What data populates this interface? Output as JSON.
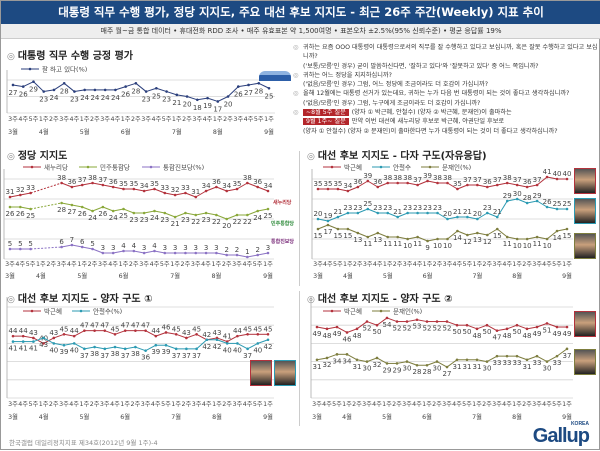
{
  "header": {
    "title": "대통령 직무 수행 평가, 정당 지지도, 주요 대선 후보 지지도 - 최근 26주 주간(Weekly) 지표 추이",
    "subtitle": "매주 월~금 통합 데이터 • 휴대전화 RDD 조사 • 매주 유효표본 약 1,500여명 • 표본오차 ±2.5%(95% 신뢰수준) • 평균 응답률 19%"
  },
  "questions": [
    {
      "lines": [
        "귀하는 요즘 OOO 대통령이 대통령으로서의 직무를 잘 수행하고 있다고 보십니까, 혹은 잘못 수행하고 있다고 보십니까?",
        "('보통/모름'인 경우) 굳이 말씀하신다면, '잘하고 있다'와 '잘못하고 있다' 중 어느 쪽입니까?"
      ]
    },
    {
      "lines": [
        "귀하는 어느 정당을 지지하십니까?",
        "('없음/모름'인 경우) 그럼, 어느 정당에 조금이라도 더 호감이 가십니까?"
      ]
    },
    {
      "lines": [
        "올해 12월에는 대통령 선거가 있는데요, 귀하는 누가 다음 번 대통령이 되는 것이 좋다고 생각하십니까?",
        "('없음/모름'인 경우) 그럼, 누구에게 조금이라도 더 호감이 가십니까?"
      ]
    },
    {
      "badge1": "~8월 5주 질문",
      "line1": "(양자 ① 박근혜, 안철수) (양자 ② 박근혜, 문재인)이 출마하는",
      "badge2": "9월 1주~ 질문",
      "line2": "만약 이번 대선에 새누리당 후보로 박근혜, 야권단일 후보로",
      "line3": "(양자 ① 안철수) (양자 ② 문재인)이 출마한다면 누가 대통령이 되는 것이 더 좋다고 생각하십니까?"
    }
  ],
  "logos": {
    "saenuri": "새누리당",
    "democratic": "민주통합당",
    "upp": "통합진보당"
  },
  "footer": "한국갤럽 데일리정치지표 제34호(2012년 9월 1주)-4",
  "brand": {
    "name": "Gallup",
    "sub": "KOREA"
  },
  "chart_data": [
    {
      "id": "approval",
      "type": "line",
      "title": "대통령 직무 수행 긍정 평가",
      "ylim": [
        10,
        30
      ],
      "weeks": [
        "3주",
        "4주",
        "5주",
        "1주",
        "2주",
        "3주",
        "4주",
        "1주",
        "2주",
        "3주",
        "4주",
        "1주",
        "2주",
        "3주",
        "4주",
        "5주",
        "1주",
        "2주",
        "3주",
        "4주",
        "1주",
        "2주",
        "3주",
        "4주",
        "5주",
        "1주"
      ],
      "months": [
        {
          "label": "3월",
          "index": 0
        },
        {
          "label": "4월",
          "index": 3
        },
        {
          "label": "5월",
          "index": 7
        },
        {
          "label": "6월",
          "index": 11
        },
        {
          "label": "7월",
          "index": 16
        },
        {
          "label": "8월",
          "index": 20
        },
        {
          "label": "9월",
          "index": 25
        }
      ],
      "series": [
        {
          "name": "잘 하고 있다(%)",
          "color": "#2b3f7c",
          "values": [
            27,
            26,
            29,
            23,
            24,
            28,
            23,
            24,
            24,
            24,
            24,
            26,
            28,
            23,
            25,
            23,
            21,
            20,
            18,
            19,
            17,
            20,
            26,
            27,
            28,
            25
          ]
        }
      ]
    },
    {
      "id": "party",
      "type": "line",
      "title": "정당 지지도",
      "ylim": [
        0,
        40
      ],
      "series": [
        {
          "name": "새누리당",
          "color": "#b3323c",
          "values": [
            31,
            32,
            33,
            null,
            null,
            38,
            36,
            37,
            38,
            37,
            36,
            35,
            35,
            34,
            35,
            33,
            32,
            33,
            31,
            34,
            36,
            34,
            35,
            38,
            36,
            34
          ]
        },
        {
          "name": "민주통합당",
          "color": "#8aa83a",
          "values": [
            26,
            26,
            25,
            null,
            null,
            28,
            27,
            26,
            24,
            26,
            24,
            25,
            23,
            23,
            24,
            23,
            21,
            23,
            22,
            23,
            22,
            20,
            22,
            22,
            24,
            25
          ]
        },
        {
          "name": "통합진보당(%)",
          "color": "#8b72c4",
          "values": [
            5,
            5,
            5,
            null,
            null,
            6,
            7,
            6,
            5,
            3,
            3,
            4,
            4,
            3,
            4,
            3,
            3,
            3,
            3,
            3,
            3,
            2,
            2,
            1,
            2,
            3
          ]
        }
      ]
    },
    {
      "id": "multi",
      "type": "line",
      "title": "대선 후보 지지도 - 다자 구도(자유응답)",
      "ylim": [
        0,
        40
      ],
      "series": [
        {
          "name": "박근혜",
          "color": "#b3323c",
          "values": [
            35,
            35,
            35,
            34,
            36,
            39,
            36,
            38,
            38,
            38,
            37,
            39,
            38,
            38,
            35,
            37,
            37,
            36,
            37,
            38,
            37,
            36,
            37,
            41,
            40,
            40
          ]
        },
        {
          "name": "안철수",
          "color": "#2b9ab2",
          "values": [
            20,
            19,
            21,
            23,
            23,
            25,
            23,
            23,
            21,
            23,
            23,
            23,
            23,
            20,
            21,
            21,
            20,
            23,
            21,
            29,
            30,
            28,
            29,
            26,
            25,
            25
          ]
        },
        {
          "name": "문재인(%)",
          "color": "#7d7d3e",
          "values": [
            15,
            17,
            15,
            15,
            13,
            11,
            13,
            11,
            11,
            10,
            11,
            9,
            10,
            10,
            14,
            12,
            13,
            12,
            15,
            11,
            10,
            10,
            11,
            10,
            14,
            15
          ]
        }
      ]
    },
    {
      "id": "twoway1",
      "type": "line",
      "title": "대선 후보 지지도 - 양자 구도 ①",
      "ylim": [
        10,
        60
      ],
      "series": [
        {
          "name": "박근혜",
          "color": "#b3323c",
          "values": [
            44,
            44,
            43,
            40,
            43,
            45,
            44,
            47,
            47,
            47,
            45,
            47,
            47,
            47,
            44,
            46,
            45,
            43,
            45,
            42,
            43,
            41,
            44,
            45,
            45,
            45
          ]
        },
        {
          "name": "안철수(%)",
          "color": "#2b9ab2",
          "values": [
            41,
            41,
            41,
            43,
            40,
            39,
            40,
            37,
            38,
            37,
            38,
            37,
            38,
            36,
            39,
            39,
            37,
            37,
            37,
            42,
            42,
            40,
            40,
            37,
            40,
            42
          ]
        }
      ]
    },
    {
      "id": "twoway2",
      "type": "line",
      "title": "대선 후보 지지도 - 양자 구도 ②",
      "ylim": [
        10,
        60
      ],
      "series": [
        {
          "name": "박근혜",
          "color": "#b3323c",
          "values": [
            49,
            48,
            49,
            46,
            48,
            52,
            50,
            54,
            52,
            52,
            53,
            52,
            52,
            52,
            50,
            50,
            48,
            50,
            47,
            48,
            50,
            48,
            49,
            51,
            49,
            49
          ]
        },
        {
          "name": "문재인(%)",
          "color": "#7d7d3e",
          "values": [
            31,
            32,
            34,
            34,
            31,
            30,
            32,
            29,
            29,
            30,
            28,
            28,
            30,
            27,
            31,
            31,
            31,
            30,
            33,
            33,
            33,
            31,
            33,
            30,
            33,
            37
          ]
        }
      ]
    }
  ]
}
